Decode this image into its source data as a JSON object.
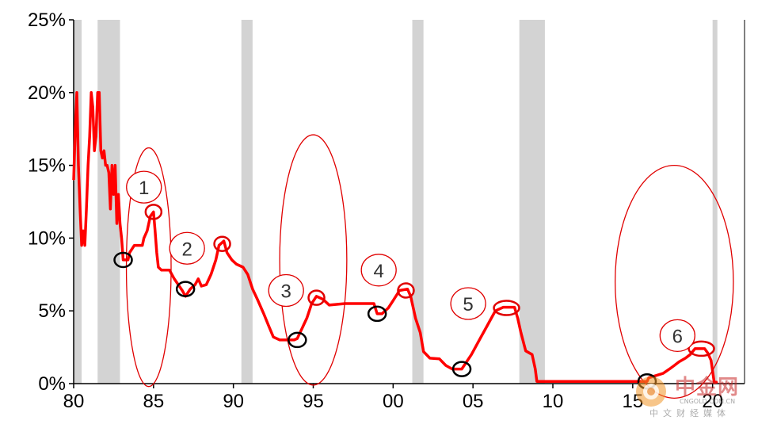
{
  "chart_data": {
    "type": "line",
    "title": "",
    "xlabel": "",
    "ylabel": "",
    "xlim": [
      1980,
      2022
    ],
    "ylim": [
      0,
      25
    ],
    "grid": false,
    "x_ticks": [
      {
        "value": 1980,
        "label": "80"
      },
      {
        "value": 1985,
        "label": "85"
      },
      {
        "value": 1990,
        "label": "90"
      },
      {
        "value": 1995,
        "label": "95"
      },
      {
        "value": 2000,
        "label": "00"
      },
      {
        "value": 2005,
        "label": "05"
      },
      {
        "value": 2010,
        "label": "10"
      },
      {
        "value": 2015,
        "label": "15"
      },
      {
        "value": 2020,
        "label": "20"
      }
    ],
    "y_ticks": [
      {
        "value": 0,
        "label": "0%"
      },
      {
        "value": 5,
        "label": "5%"
      },
      {
        "value": 10,
        "label": "10%"
      },
      {
        "value": 15,
        "label": "15%"
      },
      {
        "value": 20,
        "label": "20%"
      },
      {
        "value": 25,
        "label": "25%"
      }
    ],
    "recessions": [
      [
        1980.0,
        1980.5
      ],
      [
        1981.5,
        1982.9
      ],
      [
        1990.5,
        1991.2
      ],
      [
        2001.2,
        2001.9
      ],
      [
        2007.9,
        2009.5
      ],
      [
        2020.0,
        2020.3
      ]
    ],
    "series": [
      {
        "color": "#ff0000",
        "points": [
          [
            1980.0,
            14.0
          ],
          [
            1980.1,
            17.5
          ],
          [
            1980.2,
            20.0
          ],
          [
            1980.3,
            15.0
          ],
          [
            1980.4,
            12.0
          ],
          [
            1980.5,
            9.5
          ],
          [
            1980.6,
            10.5
          ],
          [
            1980.7,
            9.5
          ],
          [
            1980.8,
            12.0
          ],
          [
            1980.9,
            15.0
          ],
          [
            1981.0,
            17.0
          ],
          [
            1981.1,
            20.0
          ],
          [
            1981.2,
            19.0
          ],
          [
            1981.3,
            16.0
          ],
          [
            1981.4,
            17.0
          ],
          [
            1981.5,
            20.0
          ],
          [
            1981.6,
            20.0
          ],
          [
            1981.7,
            16.0
          ],
          [
            1981.8,
            15.5
          ],
          [
            1981.9,
            16.0
          ],
          [
            1982.0,
            15.0
          ],
          [
            1982.1,
            15.0
          ],
          [
            1982.2,
            14.5
          ],
          [
            1982.3,
            12.0
          ],
          [
            1982.4,
            15.0
          ],
          [
            1982.5,
            13.0
          ],
          [
            1982.6,
            15.0
          ],
          [
            1982.7,
            11.0
          ],
          [
            1982.8,
            13.0
          ],
          [
            1982.9,
            11.0
          ],
          [
            1983.0,
            10.0
          ],
          [
            1983.1,
            8.5
          ],
          [
            1983.4,
            8.5
          ],
          [
            1983.5,
            9.0
          ],
          [
            1983.8,
            9.5
          ],
          [
            1984.3,
            9.5
          ],
          [
            1984.4,
            10.0
          ],
          [
            1984.6,
            10.5
          ],
          [
            1984.8,
            11.5
          ],
          [
            1985.0,
            11.8
          ],
          [
            1985.1,
            10.5
          ],
          [
            1985.2,
            9.0
          ],
          [
            1985.3,
            8.0
          ],
          [
            1985.5,
            7.8
          ],
          [
            1986.0,
            7.8
          ],
          [
            1986.3,
            7.2
          ],
          [
            1986.8,
            6.4
          ],
          [
            1987.0,
            6.0
          ],
          [
            1987.3,
            6.5
          ],
          [
            1987.6,
            6.8
          ],
          [
            1987.8,
            7.2
          ],
          [
            1988.0,
            6.7
          ],
          [
            1988.3,
            6.8
          ],
          [
            1988.6,
            7.5
          ],
          [
            1988.9,
            8.5
          ],
          [
            1989.1,
            9.5
          ],
          [
            1989.4,
            9.8
          ],
          [
            1989.6,
            9.0
          ],
          [
            1989.9,
            8.5
          ],
          [
            1990.2,
            8.2
          ],
          [
            1990.6,
            8.0
          ],
          [
            1990.9,
            7.5
          ],
          [
            1991.2,
            6.5
          ],
          [
            1991.5,
            5.8
          ],
          [
            1991.9,
            4.8
          ],
          [
            1992.2,
            4.0
          ],
          [
            1992.5,
            3.2
          ],
          [
            1992.9,
            3.0
          ],
          [
            1993.8,
            3.0
          ],
          [
            1994.0,
            3.1
          ],
          [
            1994.3,
            3.8
          ],
          [
            1994.6,
            4.5
          ],
          [
            1994.9,
            5.5
          ],
          [
            1995.2,
            6.0
          ],
          [
            1995.6,
            5.8
          ],
          [
            1996.0,
            5.4
          ],
          [
            1997.0,
            5.5
          ],
          [
            1998.0,
            5.5
          ],
          [
            1998.8,
            5.5
          ],
          [
            1999.0,
            4.8
          ],
          [
            1999.3,
            4.8
          ],
          [
            1999.7,
            5.2
          ],
          [
            2000.0,
            5.7
          ],
          [
            2000.4,
            6.4
          ],
          [
            2000.9,
            6.5
          ],
          [
            2001.1,
            6.0
          ],
          [
            2001.4,
            4.5
          ],
          [
            2001.7,
            3.5
          ],
          [
            2001.9,
            2.2
          ],
          [
            2002.3,
            1.75
          ],
          [
            2002.9,
            1.7
          ],
          [
            2003.3,
            1.25
          ],
          [
            2003.7,
            1.0
          ],
          [
            2004.3,
            1.0
          ],
          [
            2004.6,
            1.5
          ],
          [
            2004.9,
            2.0
          ],
          [
            2005.4,
            3.0
          ],
          [
            2005.9,
            4.0
          ],
          [
            2006.4,
            5.0
          ],
          [
            2006.9,
            5.25
          ],
          [
            2007.6,
            5.25
          ],
          [
            2007.8,
            4.5
          ],
          [
            2008.0,
            3.5
          ],
          [
            2008.3,
            2.25
          ],
          [
            2008.7,
            2.0
          ],
          [
            2008.9,
            1.0
          ],
          [
            2009.0,
            0.15
          ],
          [
            2015.9,
            0.15
          ],
          [
            2016.0,
            0.4
          ],
          [
            2016.9,
            0.7
          ],
          [
            2017.3,
            1.0
          ],
          [
            2017.6,
            1.25
          ],
          [
            2017.9,
            1.5
          ],
          [
            2018.3,
            1.75
          ],
          [
            2018.6,
            2.0
          ],
          [
            2018.9,
            2.4
          ],
          [
            2019.5,
            2.4
          ],
          [
            2019.7,
            2.1
          ],
          [
            2019.9,
            1.6
          ],
          [
            2020.1,
            0.1
          ],
          [
            2020.3,
            0.1
          ]
        ]
      }
    ],
    "annotations": [
      {
        "label": "1",
        "x": 1984.4,
        "y": 13.5,
        "target": [
          1985.0,
          11.8
        ]
      },
      {
        "label": "2",
        "x": 1987.1,
        "y": 9.3,
        "target": [
          1989.3,
          9.6
        ]
      },
      {
        "label": "3",
        "x": 1993.3,
        "y": 6.4,
        "target": [
          1995.2,
          5.9
        ]
      },
      {
        "label": "4",
        "x": 1999.1,
        "y": 7.8,
        "target": [
          2000.8,
          6.4
        ]
      },
      {
        "label": "5",
        "x": 2004.7,
        "y": 5.5,
        "target": [
          2007.1,
          5.2
        ]
      },
      {
        "label": "6",
        "x": 2017.8,
        "y": 3.3,
        "target": [
          2019.3,
          2.4
        ]
      }
    ],
    "troughs": [
      [
        1983.1,
        8.5
      ],
      [
        1987.0,
        6.5
      ],
      [
        1994.0,
        3.0
      ],
      [
        1999.0,
        4.8
      ],
      [
        2004.3,
        1.0
      ],
      [
        2015.9,
        0.15
      ]
    ],
    "big_ellipses": [
      {
        "center": [
          1984.7,
          8.0
        ],
        "rx_years": 1.4,
        "ry_pct": 8.2
      },
      {
        "center": [
          1995.0,
          8.5
        ],
        "rx_years": 2.1,
        "ry_pct": 8.6
      },
      {
        "center": [
          2017.6,
          7.0
        ],
        "rx_years": 3.7,
        "ry_pct": 8.0
      }
    ]
  },
  "watermark": {
    "title": "中金网",
    "url": "CNGOLD.COM.CN",
    "subtitle": "中文财经媒体"
  },
  "colors": {
    "line": "#ff0000",
    "recession": "#d3d3d3",
    "trough_circle": "#000000",
    "annotation": "#e00000"
  }
}
